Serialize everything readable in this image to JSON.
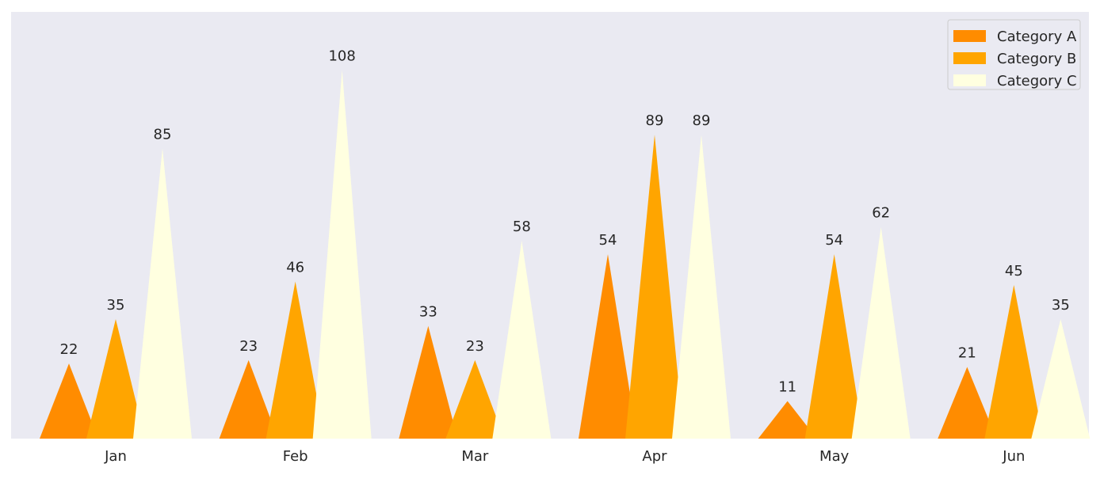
{
  "chart_data": {
    "type": "bar",
    "bar_shape": "triangle",
    "categories": [
      "Jan",
      "Feb",
      "Mar",
      "Apr",
      "May",
      "Jun"
    ],
    "series": [
      {
        "name": "Category A",
        "color": "#FF8C00",
        "values": [
          22,
          23,
          33,
          54,
          11,
          21
        ]
      },
      {
        "name": "Category B",
        "color": "#FFA500",
        "values": [
          35,
          46,
          23,
          89,
          54,
          45
        ]
      },
      {
        "name": "Category C",
        "color": "#FFFFE0",
        "values": [
          85,
          108,
          58,
          89,
          62,
          35
        ]
      }
    ],
    "ylim": [
      0,
      125
    ],
    "background_color": "#EAEAF2",
    "grid": false,
    "show_value_labels": true,
    "legend_position": "top-right"
  }
}
